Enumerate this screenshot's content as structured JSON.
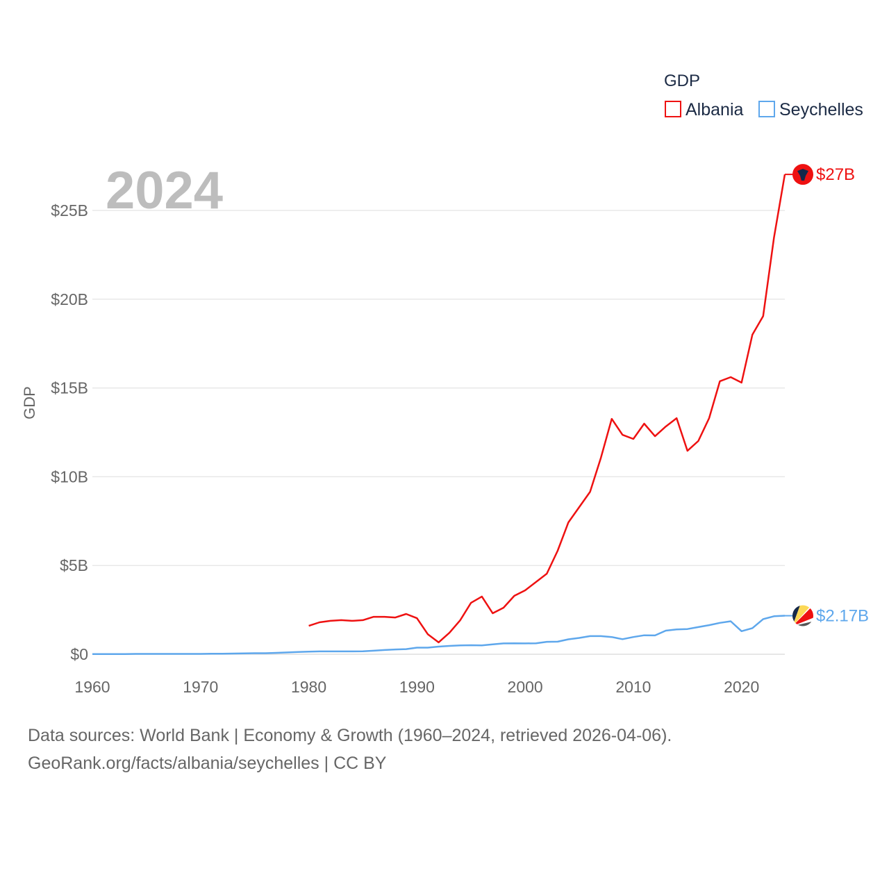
{
  "chart_data": {
    "type": "line",
    "title": "2024",
    "xlabel": "",
    "ylabel": "GDP",
    "xlim": [
      1960,
      2024
    ],
    "ylim": [
      0,
      27
    ],
    "x_ticks": [
      1960,
      1970,
      1980,
      1990,
      2000,
      2010,
      2020
    ],
    "x_tick_labels": [
      "1960",
      "1970",
      "1980",
      "1990",
      "2000",
      "2010",
      "2020"
    ],
    "y_ticks": [
      0,
      5,
      10,
      15,
      20,
      25
    ],
    "y_tick_labels": [
      "$0",
      "$5B",
      "$10B",
      "$15B",
      "$20B",
      "$25B"
    ],
    "grid": true,
    "legend": {
      "title": "GDP",
      "placement": "top-right"
    },
    "series": [
      {
        "name": "Albania",
        "color": "#ee1111",
        "end_label": "$27B",
        "flag_icon": "albania-flag-icon",
        "x": [
          1980,
          1981,
          1982,
          1983,
          1984,
          1985,
          1986,
          1987,
          1988,
          1989,
          1990,
          1991,
          1992,
          1993,
          1994,
          1995,
          1996,
          1997,
          1998,
          1999,
          2000,
          2001,
          2002,
          2003,
          2004,
          2005,
          2006,
          2007,
          2008,
          2009,
          2010,
          2011,
          2012,
          2013,
          2014,
          2015,
          2016,
          2017,
          2018,
          2019,
          2020,
          2021,
          2022,
          2023,
          2024
        ],
        "values": [
          1.6,
          1.8,
          1.88,
          1.92,
          1.88,
          1.92,
          2.11,
          2.11,
          2.07,
          2.27,
          2.03,
          1.13,
          0.67,
          1.21,
          1.92,
          2.9,
          3.25,
          2.31,
          2.62,
          3.29,
          3.6,
          4.07,
          4.54,
          5.83,
          7.43,
          8.29,
          9.15,
          11.07,
          13.26,
          12.36,
          12.13,
          12.99,
          12.28,
          12.83,
          13.3,
          11.46,
          12.01,
          13.3,
          15.38,
          15.61,
          15.3,
          18.0,
          19.05,
          23.47,
          27.03
        ]
      },
      {
        "name": "Seychelles",
        "color": "#5ea7ec",
        "end_label": "$2.17B",
        "flag_icon": "seychelles-flag-icon",
        "x": [
          1960,
          1961,
          1962,
          1963,
          1964,
          1965,
          1966,
          1967,
          1968,
          1969,
          1970,
          1971,
          1972,
          1973,
          1974,
          1975,
          1976,
          1977,
          1978,
          1979,
          1980,
          1981,
          1982,
          1983,
          1984,
          1985,
          1986,
          1987,
          1988,
          1989,
          1990,
          1991,
          1992,
          1993,
          1994,
          1995,
          1996,
          1997,
          1998,
          1999,
          2000,
          2001,
          2002,
          2003,
          2004,
          2005,
          2006,
          2007,
          2008,
          2009,
          2010,
          2011,
          2012,
          2013,
          2014,
          2015,
          2016,
          2017,
          2018,
          2019,
          2020,
          2021,
          2022,
          2023,
          2024
        ],
        "values": [
          0.01,
          0.01,
          0.01,
          0.01,
          0.02,
          0.02,
          0.02,
          0.02,
          0.02,
          0.02,
          0.02,
          0.03,
          0.03,
          0.04,
          0.05,
          0.06,
          0.06,
          0.08,
          0.1,
          0.13,
          0.15,
          0.16,
          0.16,
          0.16,
          0.16,
          0.17,
          0.2,
          0.24,
          0.27,
          0.29,
          0.37,
          0.37,
          0.43,
          0.47,
          0.5,
          0.51,
          0.5,
          0.56,
          0.61,
          0.62,
          0.61,
          0.62,
          0.7,
          0.71,
          0.84,
          0.92,
          1.02,
          1.02,
          0.97,
          0.85,
          0.97,
          1.07,
          1.06,
          1.33,
          1.4,
          1.42,
          1.53,
          1.64,
          1.77,
          1.86,
          1.3,
          1.47,
          1.98,
          2.14,
          2.17
        ]
      }
    ]
  },
  "footer": {
    "line1": "Data sources: World Bank | Economy & Growth (1960–2024, retrieved 2026-04-06).",
    "line2": "GeoRank.org/facts/albania/seychelles | CC BY"
  }
}
